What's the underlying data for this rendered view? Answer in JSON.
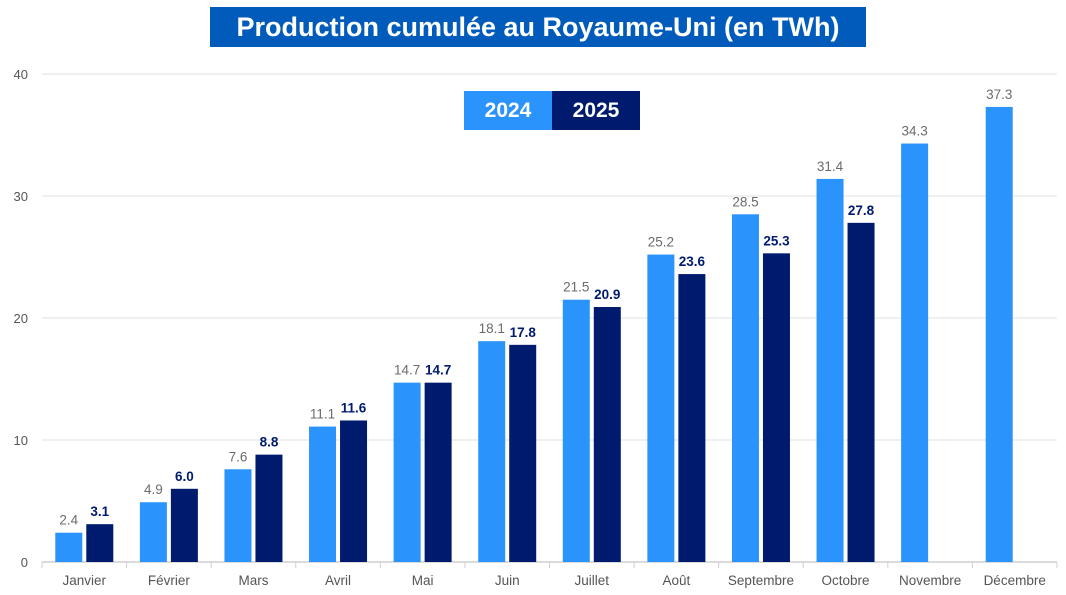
{
  "chart_data": {
    "type": "bar",
    "title": "Production cumulée au Royaume-Uni (en TWh)",
    "xlabel": "",
    "ylabel": "",
    "ylim": [
      0,
      40
    ],
    "yticks": [
      0,
      10,
      20,
      30,
      40
    ],
    "grid": true,
    "legend_placement": "top-center",
    "categories": [
      "Janvier",
      "Février",
      "Mars",
      "Avril",
      "Mai",
      "Juin",
      "Juillet",
      "Août",
      "Septembre",
      "Octobre",
      "Novembre",
      "Décembre"
    ],
    "series": [
      {
        "name": "2024",
        "color": "#2a93fc",
        "label_color": "#6b6b6b",
        "values": [
          2.4,
          4.9,
          7.6,
          11.1,
          14.7,
          18.1,
          21.5,
          25.2,
          28.5,
          31.4,
          34.3,
          37.3
        ]
      },
      {
        "name": "2025",
        "color": "#001a6e",
        "label_color": "#001a6e",
        "values": [
          3.1,
          6.0,
          8.8,
          11.6,
          14.7,
          17.8,
          20.9,
          23.6,
          25.3,
          27.8,
          null,
          null
        ]
      }
    ]
  },
  "colors": {
    "title_bg": "#005bbb"
  }
}
